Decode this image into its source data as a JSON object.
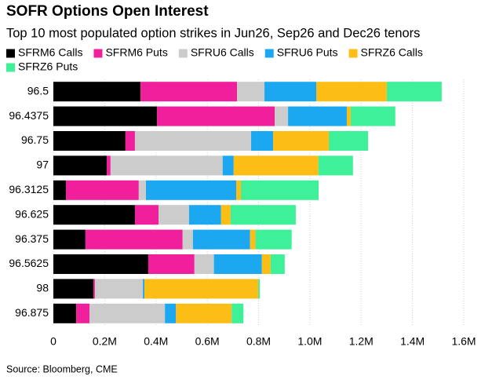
{
  "chart_data": {
    "type": "stacked-barh",
    "title": "SOFR Options Open Interest",
    "subtitle": "Top 10 most populated option strikes in Jun26, Sep26 and Dec26 tenors",
    "source": "Source: Bloomberg, CME",
    "categories": [
      "96.5",
      "96.4375",
      "96.75",
      "97",
      "96.3125",
      "96.625",
      "96.375",
      "96.5625",
      "98",
      "96.875"
    ],
    "series": [
      {
        "name": "SFRM6 Calls",
        "color": "#000000",
        "values": [
          340000,
          404000,
          281000,
          208000,
          49000,
          318000,
          125000,
          370000,
          156000,
          89000
        ]
      },
      {
        "name": "SFRM6 Puts",
        "color": "#f01f9c",
        "values": [
          376000,
          459000,
          37000,
          15000,
          284000,
          92000,
          379000,
          180000,
          6000,
          52000
        ]
      },
      {
        "name": "SFRU6 Calls",
        "color": "#cccccc",
        "values": [
          107000,
          52000,
          453000,
          437000,
          28000,
          119000,
          40000,
          76000,
          187000,
          294000
        ]
      },
      {
        "name": "SFRU6 Puts",
        "color": "#1ba8f0",
        "values": [
          202000,
          229000,
          86000,
          43000,
          352000,
          125000,
          223000,
          187000,
          6000,
          43000
        ]
      },
      {
        "name": "SFRZ6 Calls",
        "color": "#fcbd14",
        "values": [
          275000,
          15000,
          217000,
          330000,
          18000,
          37000,
          21000,
          34000,
          444000,
          217000
        ]
      },
      {
        "name": "SFRZ6 Puts",
        "color": "#3ef097",
        "values": [
          214000,
          174000,
          153000,
          135000,
          303000,
          254000,
          141000,
          55000,
          6000,
          46000
        ]
      }
    ],
    "xlim": [
      0,
      1600000
    ],
    "xticks": [
      0,
      {
        "value": 200000,
        "label": "0.2M"
      },
      {
        "value": 400000,
        "label": "0.4M"
      },
      {
        "value": 600000,
        "label": "0.6M"
      },
      {
        "value": 800000,
        "label": "0.8M"
      },
      {
        "value": 1000000,
        "label": "1.0M"
      },
      {
        "value": 1200000,
        "label": "1.2M"
      },
      {
        "value": 1400000,
        "label": "1.4M"
      },
      {
        "value": 1600000,
        "label": "1.6M"
      }
    ],
    "grid": true
  }
}
